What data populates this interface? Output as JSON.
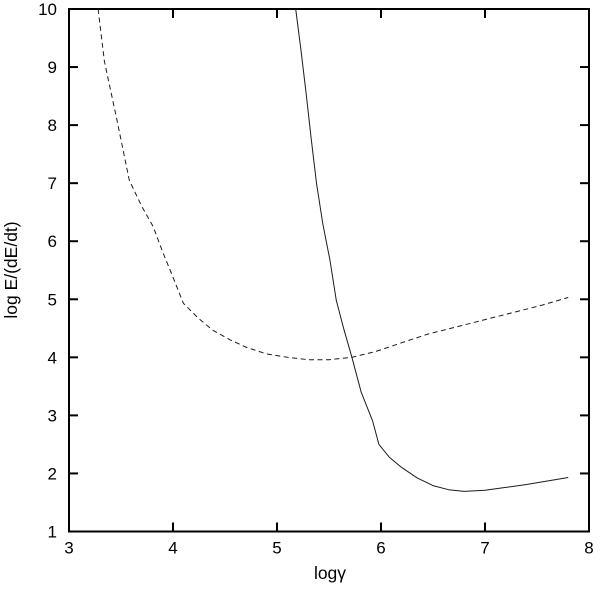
{
  "chart_data": {
    "type": "line",
    "title": "",
    "xlabel": "logγ",
    "ylabel": "log E/(dE/dt)",
    "xlim": [
      3,
      8
    ],
    "ylim": [
      1,
      10
    ],
    "xticks": [
      3,
      4,
      5,
      6,
      7,
      8
    ],
    "yticks": [
      1,
      2,
      3,
      4,
      5,
      6,
      7,
      8,
      9,
      10
    ],
    "grid": false,
    "legend": "none",
    "background_color": "#ffffff",
    "axis_color": "#000000",
    "series": [
      {
        "name": "dashed-curve",
        "style": "dashed",
        "color": "#1c1c1c",
        "points": [
          [
            3.28,
            10.0
          ],
          [
            3.34,
            9.1
          ],
          [
            3.46,
            8.1
          ],
          [
            3.58,
            7.05
          ],
          [
            3.7,
            6.6
          ],
          [
            3.81,
            6.25
          ],
          [
            3.9,
            5.82
          ],
          [
            4.0,
            5.38
          ],
          [
            4.1,
            4.93
          ],
          [
            4.24,
            4.68
          ],
          [
            4.38,
            4.47
          ],
          [
            4.55,
            4.3
          ],
          [
            4.71,
            4.17
          ],
          [
            4.9,
            4.06
          ],
          [
            5.1,
            4.0
          ],
          [
            5.3,
            3.96
          ],
          [
            5.5,
            3.96
          ],
          [
            5.72,
            4.0
          ],
          [
            5.95,
            4.1
          ],
          [
            6.18,
            4.24
          ],
          [
            6.45,
            4.4
          ],
          [
            6.76,
            4.54
          ],
          [
            7.0,
            4.65
          ],
          [
            7.29,
            4.78
          ],
          [
            7.55,
            4.9
          ],
          [
            7.8,
            5.03
          ]
        ]
      },
      {
        "name": "solid-curve",
        "style": "solid",
        "color": "#1c1c1c",
        "points": [
          [
            5.18,
            10.0
          ],
          [
            5.23,
            9.3
          ],
          [
            5.28,
            8.55
          ],
          [
            5.33,
            7.75
          ],
          [
            5.38,
            7.0
          ],
          [
            5.44,
            6.3
          ],
          [
            5.51,
            5.67
          ],
          [
            5.57,
            4.98
          ],
          [
            5.64,
            4.5
          ],
          [
            5.72,
            4.0
          ],
          [
            5.81,
            3.4
          ],
          [
            5.92,
            2.9
          ],
          [
            5.98,
            2.5
          ],
          [
            6.08,
            2.28
          ],
          [
            6.2,
            2.1
          ],
          [
            6.35,
            1.92
          ],
          [
            6.5,
            1.79
          ],
          [
            6.65,
            1.72
          ],
          [
            6.8,
            1.69
          ],
          [
            7.0,
            1.71
          ],
          [
            7.2,
            1.76
          ],
          [
            7.4,
            1.81
          ],
          [
            7.6,
            1.87
          ],
          [
            7.8,
            1.93
          ]
        ]
      }
    ]
  }
}
